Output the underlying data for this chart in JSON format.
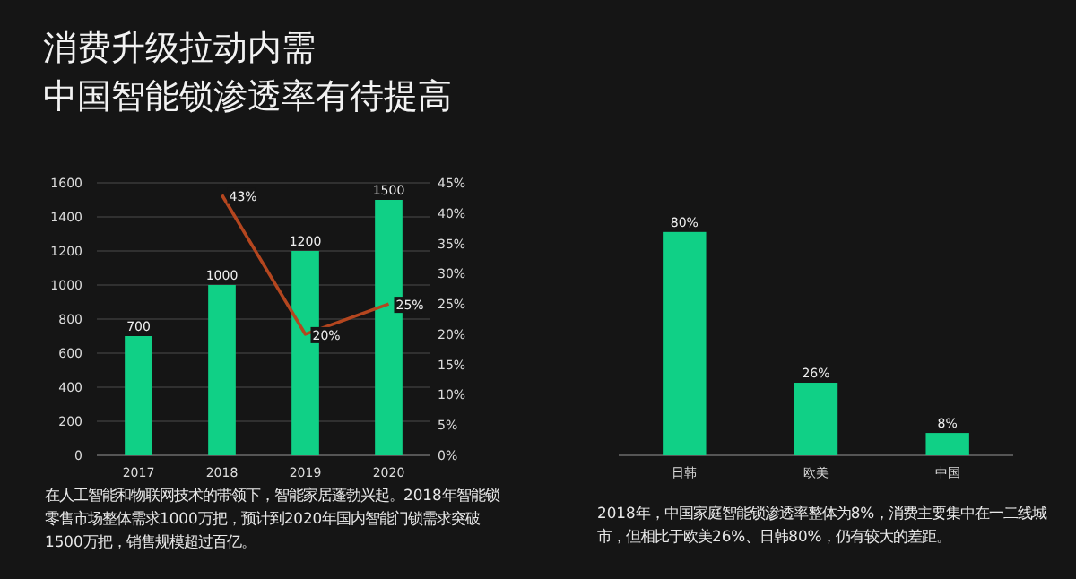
{
  "chart_data": [
    {
      "type": "bar",
      "title": "消费升级拉动内需",
      "subtitle": "中国智能锁渗透率有待提高",
      "categories": [
        "2017",
        "2018",
        "2019",
        "2020"
      ],
      "series": [
        {
          "color": "#10d086",
          "values": [
            700,
            1000,
            1200,
            1500
          ],
          "data_labels": true
        },
        {
          "type": "line",
          "axis": "y2",
          "color": "#b4461f",
          "values": [
            null,
            43,
            20,
            25
          ],
          "value_labels": [
            null,
            "43%",
            "20%",
            "25%"
          ]
        }
      ],
      "ylim": [
        0,
        1600
      ],
      "yticks": [
        0,
        200,
        400,
        600,
        800,
        1000,
        1200,
        1400,
        1600
      ],
      "y2lim": [
        0,
        45
      ],
      "y2ticks": [
        {
          "value": 0,
          "label": "0%"
        },
        {
          "value": 5,
          "label": "5%"
        },
        {
          "value": 10,
          "label": "10%"
        },
        {
          "value": 15,
          "label": "15%"
        },
        {
          "value": 20,
          "label": "20%"
        },
        {
          "value": 25,
          "label": "25%"
        },
        {
          "value": 30,
          "label": "30%"
        },
        {
          "value": 35,
          "label": "35%"
        },
        {
          "value": 40,
          "label": "40%"
        },
        {
          "value": 45,
          "label": "45%"
        }
      ],
      "grid": "y",
      "annotations": [
        "在人工智能和物联网技术的带领下，智能家居蓬勃兴起。2018年智能锁零售市场整体需求1000万把，预计到2020年国内智能门锁需求突破1500万把，销售规模超过百亿。"
      ]
    },
    {
      "type": "bar",
      "categories": [
        "日韩",
        "欧美",
        "中国"
      ],
      "values": [
        80,
        26,
        8
      ],
      "value_labels": [
        "80%",
        "26%",
        "8%"
      ],
      "color": "#10d086",
      "tick_labels": "x",
      "annotations": [
        "2018年，中国家庭智能锁渗透率整体为8%，消费主要集中在一二线城市，但相比于欧美26%、日韩80%，仍有较大的差距。"
      ]
    }
  ]
}
